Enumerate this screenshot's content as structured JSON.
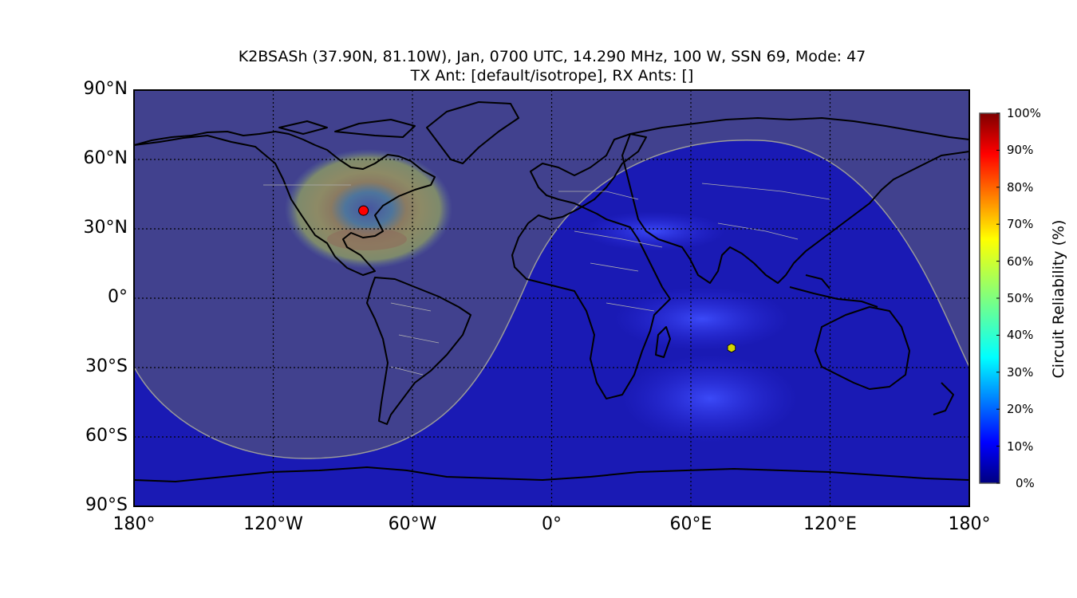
{
  "title_line1": "K2BSASh (37.90N,  81.10W), Jan, 0700 UTC, 14.290 MHz, 100 W, SSN 69, Mode: 47",
  "title_line2": "TX Ant: [default/isotrope], RX Ants: []",
  "map": {
    "projection": "equirectangular",
    "lon_range": [
      -180,
      180
    ],
    "lat_range": [
      -90,
      90
    ],
    "transmitter": {
      "lat": 37.9,
      "lon": -81.1,
      "color": "#ff0000"
    },
    "subsolar_point": {
      "lat": -21.5,
      "lon": 77.5,
      "color": "#d4d400"
    },
    "night_shading": true,
    "background_color": "#1a1ab4"
  },
  "lat_labels": [
    "90°N",
    "60°N",
    "30°N",
    "0°",
    "30°S",
    "60°S",
    "90°S"
  ],
  "lon_labels": [
    "180°",
    "120°W",
    "60°W",
    "0°",
    "60°E",
    "120°E",
    "180°"
  ],
  "colorbar": {
    "title": "Circuit Reliability (%)",
    "ticks": [
      "0%",
      "10%",
      "20%",
      "30%",
      "40%",
      "50%",
      "60%",
      "70%",
      "80%",
      "90%",
      "100%"
    ],
    "colormap": "jet"
  }
}
